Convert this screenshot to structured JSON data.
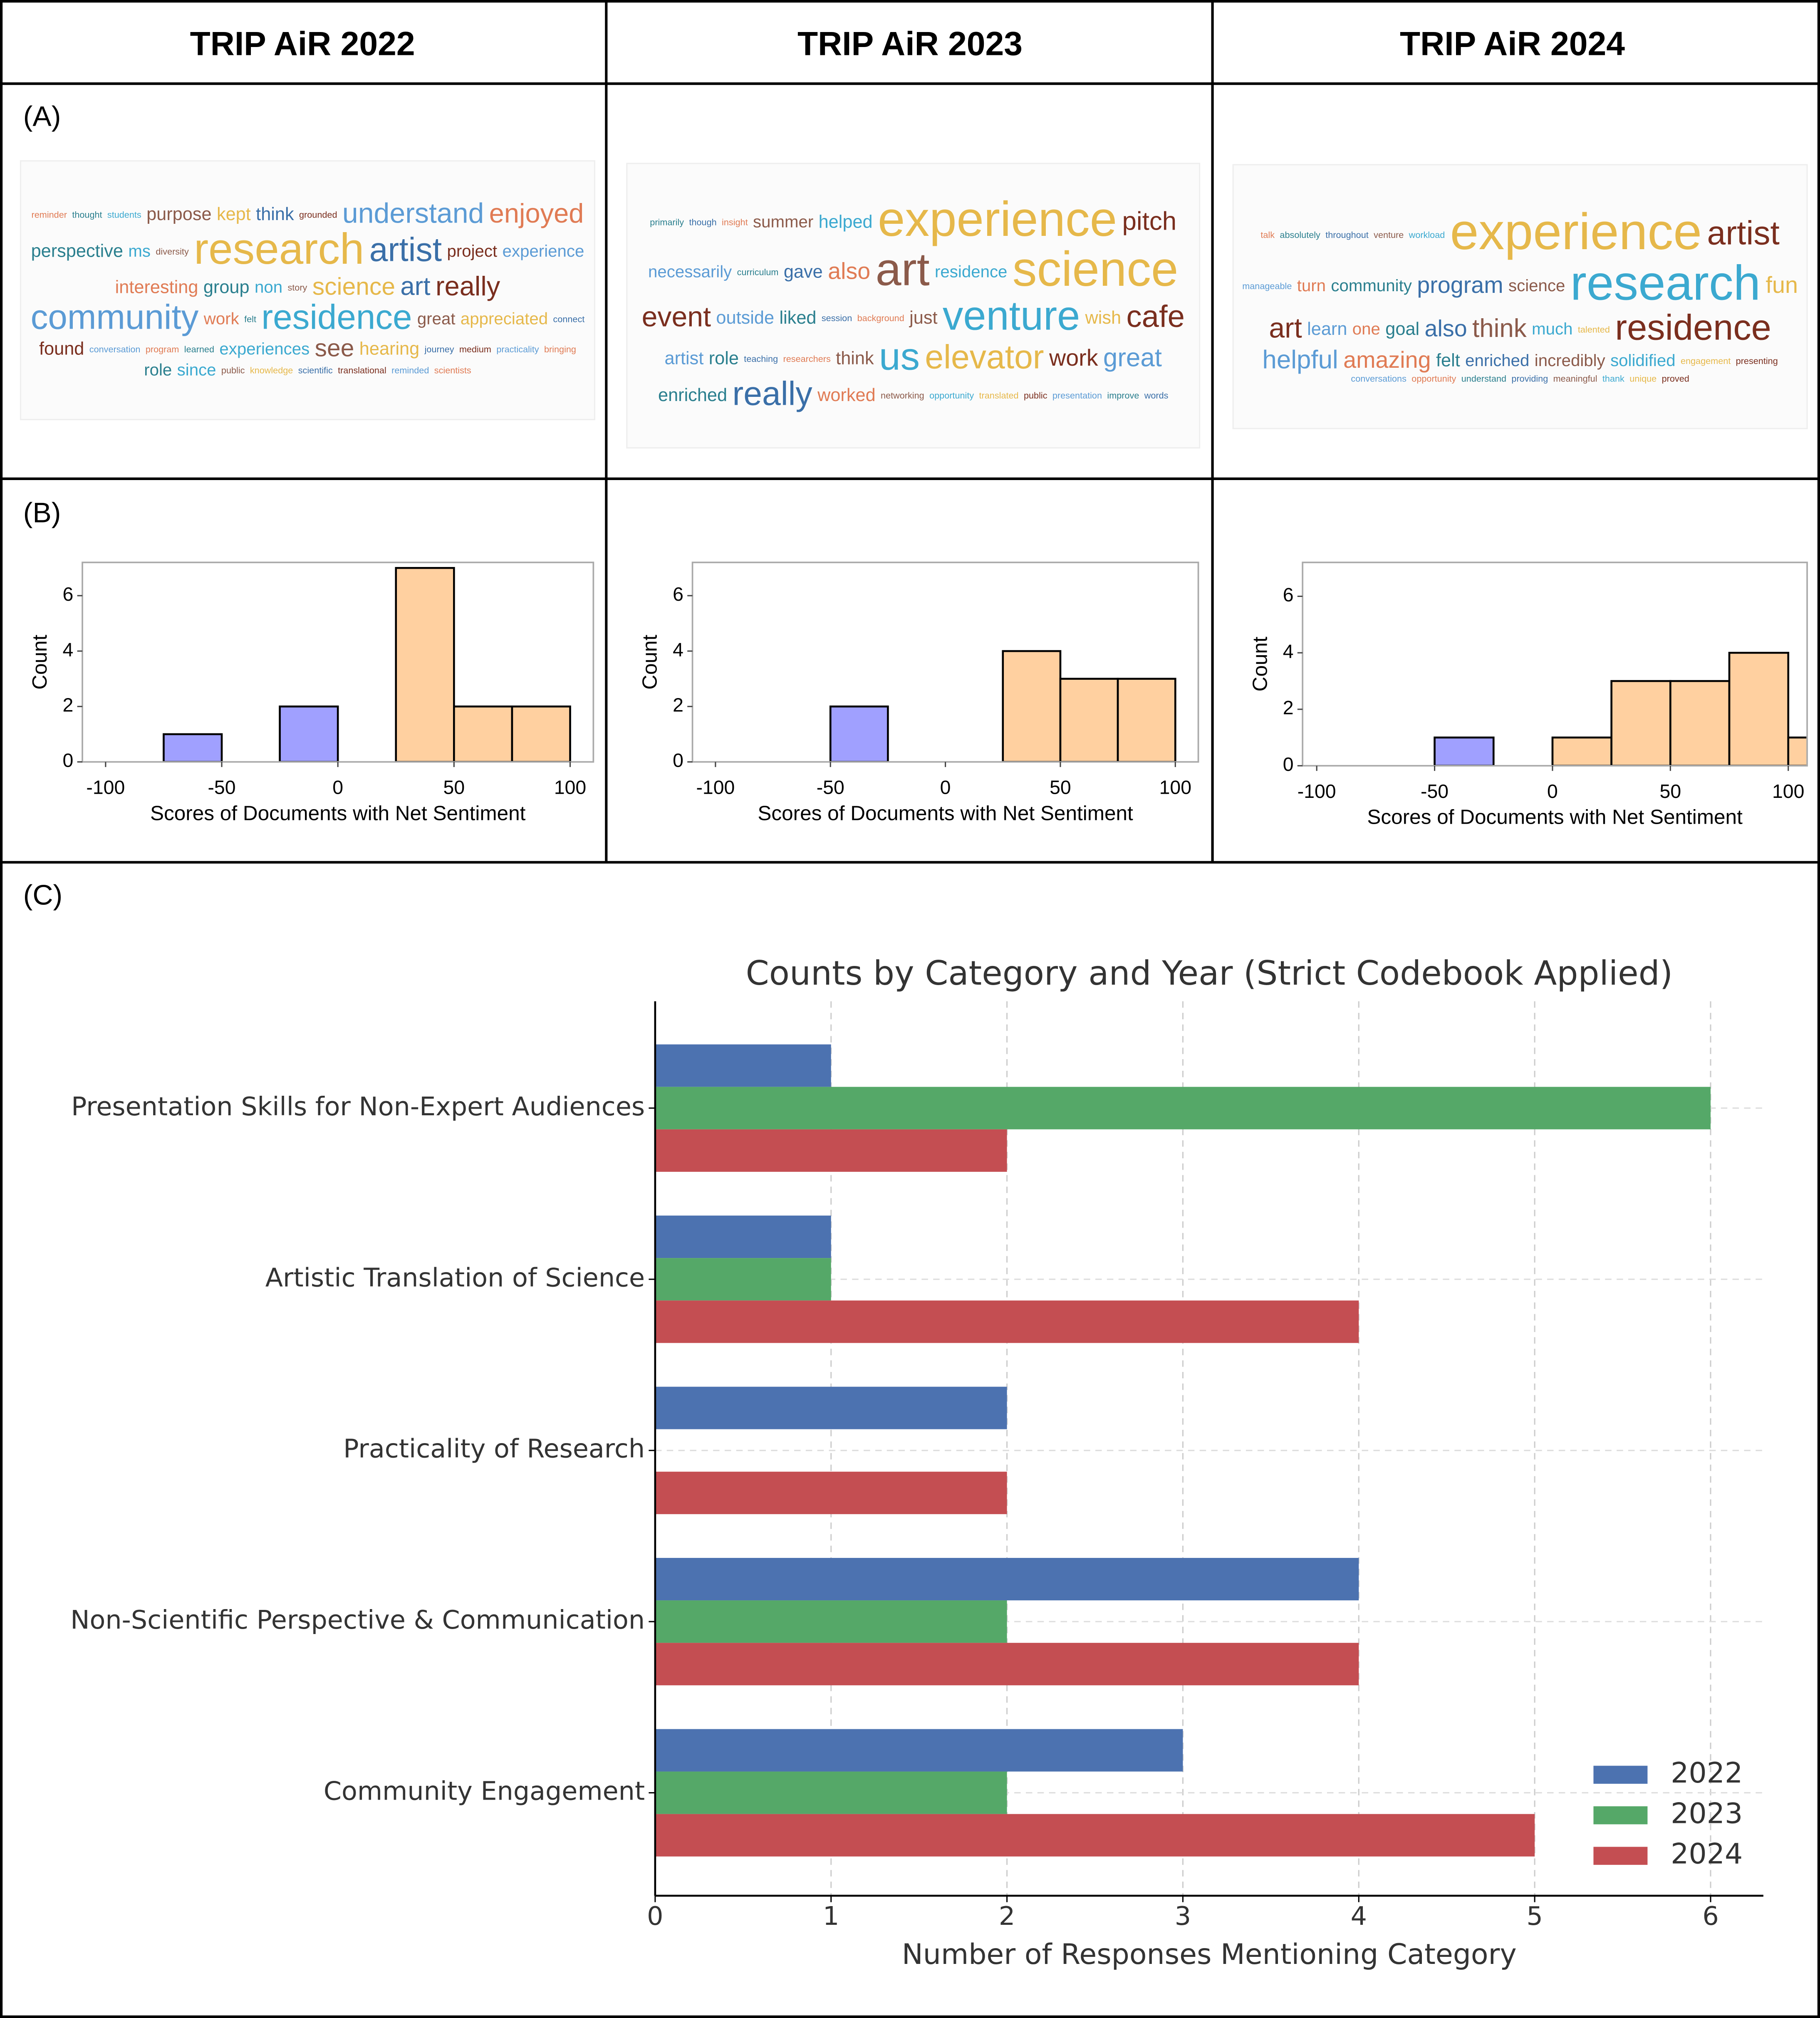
{
  "header": [
    "TRIP AiR 2022",
    "TRIP AiR 2023",
    "TRIP AiR 2024"
  ],
  "panel_labels": [
    "(A)",
    "(B)",
    "(C)"
  ],
  "chart_data": [
    {
      "type": "wordcloud",
      "colors": [
        "#e07b54",
        "#2a7f8e",
        "#3ba9d0",
        "#8b5a4a",
        "#e6b84a",
        "#3a6fa8",
        "#7a2e1e",
        "#5b9bd5"
      ],
      "words": [
        "reminder",
        "thought",
        "students",
        "purpose",
        "kept",
        "think",
        "grounded",
        "understand",
        "enjoyed",
        "perspective",
        "ms",
        "diversity",
        "research",
        "artist",
        "project",
        "experience",
        "interesting",
        "group",
        "non",
        "story",
        "science",
        "art",
        "really",
        "community",
        "work",
        "felt",
        "residence",
        "great",
        "appreciated",
        "connect",
        "found",
        "conversation",
        "program",
        "learned",
        "experiences",
        "see",
        "hearing",
        "journey",
        "medium",
        "practicality",
        "bringing",
        "role",
        "since",
        "public",
        "knowledge",
        "scientific",
        "translational",
        "reminded",
        "scientists"
      ],
      "weights": [
        7,
        7,
        7,
        14,
        14,
        14,
        7,
        22,
        21,
        14,
        13,
        7,
        34,
        26,
        13,
        13,
        14,
        14,
        13,
        7,
        19,
        20,
        21,
        27,
        13,
        7,
        27,
        13,
        13,
        7,
        14,
        7,
        7,
        7,
        13,
        19,
        14,
        7,
        7,
        7,
        7,
        13,
        13,
        7,
        7,
        7,
        7,
        7,
        7
      ]
    },
    {
      "type": "wordcloud",
      "colors": [
        "#2a7f8e",
        "#3a6fa8",
        "#e07b54",
        "#8b5a4a",
        "#3ba9d0",
        "#e6b84a",
        "#7a2e1e",
        "#5b9bd5"
      ],
      "words": [
        "primarily",
        "though",
        "insight",
        "summer",
        "helped",
        "experience",
        "pitch",
        "necessarily",
        "curriculum",
        "gave",
        "also",
        "art",
        "residence",
        "science",
        "event",
        "outside",
        "liked",
        "session",
        "background",
        "just",
        "venture",
        "wish",
        "cafe",
        "artist",
        "role",
        "teaching",
        "researchers",
        "think",
        "us",
        "elevator",
        "work",
        "great",
        "enriched",
        "really",
        "worked",
        "networking",
        "opportunity",
        "translated",
        "public",
        "presentation",
        "improve",
        "words"
      ],
      "weights": [
        7,
        7,
        7,
        13,
        14,
        38,
        20,
        13,
        7,
        14,
        18,
        36,
        13,
        38,
        22,
        14,
        14,
        7,
        7,
        14,
        32,
        14,
        24,
        14,
        14,
        7,
        7,
        14,
        30,
        26,
        18,
        20,
        14,
        26,
        14,
        7,
        7,
        7,
        7,
        7,
        7,
        7
      ]
    },
    {
      "type": "wordcloud",
      "colors": [
        "#e07b54",
        "#2a7f8e",
        "#3a6fa8",
        "#8b5a4a",
        "#3ba9d0",
        "#e6b84a",
        "#7a2e1e",
        "#5b9bd5"
      ],
      "words": [
        "talk",
        "absolutely",
        "throughout",
        "venture",
        "workload",
        "experience",
        "artist",
        "manageable",
        "turn",
        "community",
        "program",
        "science",
        "research",
        "fun",
        "art",
        "learn",
        "one",
        "goal",
        "also",
        "think",
        "much",
        "talented",
        "residence",
        "helpful",
        "amazing",
        "felt",
        "enriched",
        "incredibly",
        "solidified",
        "engagement",
        "presenting",
        "conversations",
        "opportunity",
        "understand",
        "providing",
        "meaningful",
        "thank",
        "unique",
        "proved"
      ],
      "weights": [
        7,
        7,
        7,
        7,
        7,
        40,
        26,
        7,
        13,
        13,
        18,
        13,
        38,
        18,
        22,
        14,
        13,
        14,
        18,
        20,
        13,
        7,
        28,
        20,
        18,
        14,
        13,
        13,
        13,
        7,
        7,
        7,
        7,
        7,
        7,
        7,
        7,
        7,
        7
      ]
    },
    {
      "type": "histogram",
      "xlabel": "Scores of Documents with Net Sentiment",
      "ylabel": "Count",
      "bins": [
        -100,
        -75,
        -50,
        -25,
        0,
        25,
        50,
        75,
        100
      ],
      "counts": [
        0,
        1,
        0,
        2,
        0,
        7,
        2,
        2
      ],
      "negative_color": "#a0a0ff",
      "positive_color": "#ffd0a0",
      "xlim": [
        -110,
        110
      ],
      "xticks": [
        -100,
        -50,
        0,
        50,
        100
      ],
      "ylim": [
        0,
        7.2
      ],
      "yticks": [
        0,
        2,
        4,
        6
      ]
    },
    {
      "type": "histogram",
      "xlabel": "Scores of Documents with Net Sentiment",
      "ylabel": "Count",
      "bins": [
        -100,
        -75,
        -50,
        -25,
        0,
        25,
        50,
        75,
        100
      ],
      "counts": [
        0,
        0,
        2,
        0,
        0,
        4,
        3,
        3
      ],
      "negative_color": "#a0a0ff",
      "positive_color": "#ffd0a0",
      "xlim": [
        -110,
        110
      ],
      "xticks": [
        -100,
        -50,
        0,
        50,
        100
      ],
      "ylim": [
        0,
        7.2
      ],
      "yticks": [
        0,
        2,
        4,
        6
      ]
    },
    {
      "type": "histogram",
      "xlabel": "Scores of Documents with Net Sentiment",
      "ylabel": "Count",
      "bins": [
        -100,
        -75,
        -50,
        -25,
        0,
        25,
        50,
        75,
        100,
        125
      ],
      "counts": [
        0,
        0,
        1,
        0,
        1,
        3,
        3,
        4,
        1
      ],
      "negative_color": "#a0a0ff",
      "positive_color": "#ffd0a0",
      "xlim": [
        -106,
        108
      ],
      "xticks": [
        -100,
        -50,
        0,
        50,
        100
      ],
      "ylim": [
        0,
        7.2
      ],
      "yticks": [
        0,
        2,
        4,
        6
      ]
    },
    {
      "type": "hbar",
      "title": "Counts by Category and Year (Strict Codebook Applied)",
      "xlabel": "Number of Responses Mentioning Category",
      "categories": [
        "Presentation Skills for Non-Expert Audiences",
        "Artistic Translation of Science",
        "Practicality of Research",
        "Non-Scientific Perspective & Communication",
        "Community Engagement"
      ],
      "series": [
        {
          "name": "2022",
          "color": "#4c72b0",
          "values": [
            1,
            1,
            2,
            4,
            3
          ]
        },
        {
          "name": "2023",
          "color": "#55a868",
          "values": [
            6,
            1,
            0,
            2,
            2
          ]
        },
        {
          "name": "2024",
          "color": "#c44e52",
          "values": [
            2,
            4,
            2,
            4,
            5
          ]
        }
      ],
      "xlim": [
        0,
        6.3
      ],
      "xticks": [
        0,
        1,
        2,
        3,
        4,
        5,
        6
      ],
      "grid": true,
      "legend": "lower right"
    }
  ]
}
